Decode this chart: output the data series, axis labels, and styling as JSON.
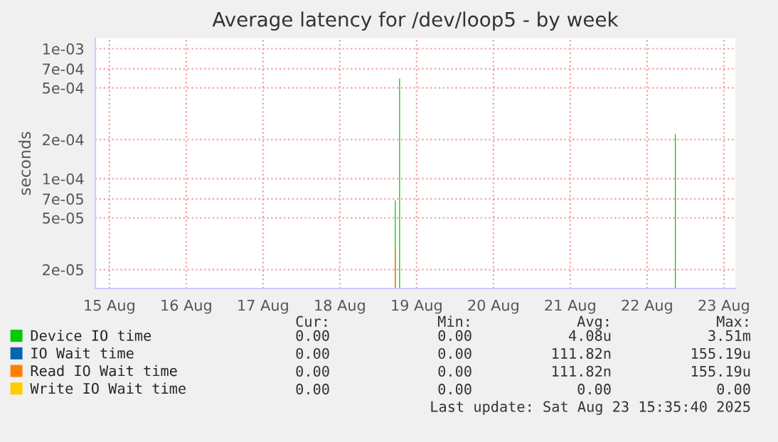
{
  "chart_data": {
    "type": "bar",
    "title": "Average latency for /dev/loop5 - by week",
    "ylabel": "seconds",
    "log": "y",
    "grid": true,
    "legend": "bottom",
    "xlim": [
      "2025-08-15T07:35",
      "2025-08-23T15:35"
    ],
    "xticks": [
      {
        "value": "2025-08-15T12:00",
        "label": "15 Aug"
      },
      {
        "value": "2025-08-16T12:00",
        "label": "16 Aug"
      },
      {
        "value": "2025-08-17T12:00",
        "label": "17 Aug"
      },
      {
        "value": "2025-08-18T12:00",
        "label": "18 Aug"
      },
      {
        "value": "2025-08-19T12:00",
        "label": "19 Aug"
      },
      {
        "value": "2025-08-20T12:00",
        "label": "20 Aug"
      },
      {
        "value": "2025-08-21T12:00",
        "label": "21 Aug"
      },
      {
        "value": "2025-08-22T12:00",
        "label": "22 Aug"
      },
      {
        "value": "2025-08-23T12:00",
        "label": "23 Aug"
      }
    ],
    "ylim": [
      1.43e-05,
      0.0012
    ],
    "yticks": [
      {
        "value": 2e-05,
        "label": "2e-05"
      },
      {
        "value": 5e-05,
        "label": "5e-05"
      },
      {
        "value": 7e-05,
        "label": "7e-05"
      },
      {
        "value": 0.0001,
        "label": "1e-04"
      },
      {
        "value": 0.0002,
        "label": "2e-04"
      },
      {
        "value": 0.0005,
        "label": "5e-04"
      },
      {
        "value": 0.0007,
        "label": "7e-04"
      },
      {
        "value": 0.001,
        "label": "1e-03"
      }
    ],
    "x": [
      "2025-08-19T05:20",
      "2025-08-19T06:40",
      "2025-08-22T20:50"
    ],
    "series": [
      {
        "name": "Device IO time",
        "color": "#00cc00",
        "values": [
          6.8e-05,
          0.00059,
          0.00022
        ]
      },
      {
        "name": "IO Wait time",
        "color": "#0066b3",
        "values": [
          null,
          null,
          null
        ]
      },
      {
        "name": "Read IO Wait time",
        "color": "#ff8000",
        "values": [
          2.9e-05,
          null,
          null
        ]
      },
      {
        "name": "Write IO Wait time",
        "color": "#ffcc00",
        "values": [
          null,
          null,
          null
        ]
      }
    ],
    "annotations": [
      "Cur:",
      "Min:",
      "Avg:",
      "Max:",
      "0.00",
      "0.00",
      "4.08u",
      "3.51m",
      "0.00",
      "0.00",
      "111.82n",
      "155.19u",
      "0.00",
      "0.00",
      "111.82n",
      "155.19u",
      "0.00",
      "0.00",
      "0.00",
      "0.00",
      "Last update: Sat Aug 23 15:35:40 2025"
    ]
  }
}
